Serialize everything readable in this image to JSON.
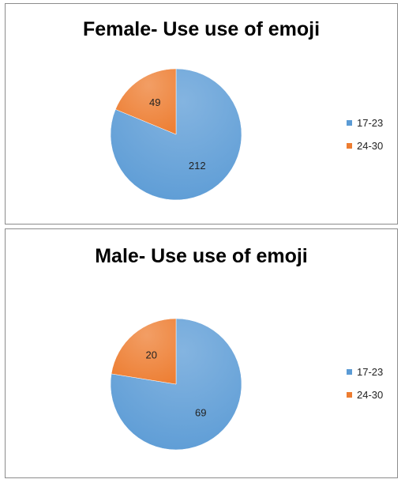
{
  "chart_data": [
    {
      "type": "pie",
      "title": "Female- Use use of emoji",
      "categories": [
        "17-23",
        "24-30"
      ],
      "values": [
        212,
        49
      ],
      "colors": [
        "#5b9bd5",
        "#ed7d31"
      ],
      "legend": "right"
    },
    {
      "type": "pie",
      "title": "Male- Use use of emoji",
      "categories": [
        "17-23",
        "24-30"
      ],
      "values": [
        69,
        20
      ],
      "colors": [
        "#5b9bd5",
        "#ed7d31"
      ],
      "legend": "right"
    }
  ]
}
